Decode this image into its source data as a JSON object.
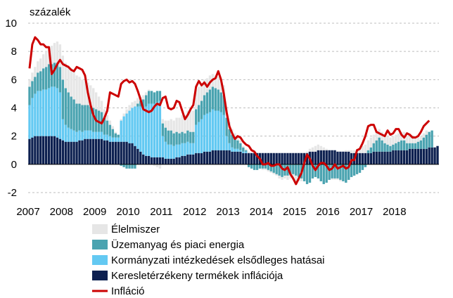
{
  "chart_data": {
    "type": "bar",
    "stacked": true,
    "unit_label": "százalék",
    "x_start": "2007-01",
    "x_end": "2018-06",
    "year_labels": [
      "2007",
      "2008",
      "2009",
      "2010",
      "2011",
      "2012",
      "2013",
      "2014",
      "2015",
      "2016",
      "2017",
      "2018"
    ],
    "ylim": [
      -2,
      10
    ],
    "y_ticks": [
      "-2",
      "0",
      "2",
      "4",
      "6",
      "8",
      "10"
    ],
    "grid": true,
    "legend_position": "bottom",
    "legend": [
      {
        "label": "Élelmiszer",
        "color": "#e6e6e6"
      },
      {
        "label": "Üzemanyag és piaci energia",
        "color": "#4aa3b0"
      },
      {
        "label": "Kormányzati intézkedések elsődleges hatásai",
        "color": "#63c9f2"
      },
      {
        "label": "Keresletérzékeny termékek inflációja",
        "color": "#0d2050"
      },
      {
        "label": "Infláció",
        "color": "#cc0000"
      }
    ],
    "series": [
      {
        "name": "Keresletérzékeny termékek inflációja",
        "color": "#0d2050",
        "values": [
          1.8,
          1.9,
          2.0,
          2.0,
          2.0,
          2.0,
          2.0,
          2.0,
          2.0,
          2.0,
          1.9,
          1.8,
          1.7,
          1.6,
          1.6,
          1.6,
          1.6,
          1.6,
          1.7,
          1.7,
          1.8,
          1.8,
          1.8,
          1.8,
          1.8,
          1.8,
          1.8,
          1.7,
          1.7,
          1.6,
          1.6,
          1.6,
          1.6,
          1.6,
          1.6,
          1.6,
          1.5,
          1.5,
          1.3,
          1.1,
          0.9,
          0.7,
          0.6,
          0.6,
          0.5,
          0.5,
          0.5,
          0.5,
          0.5,
          0.4,
          0.4,
          0.4,
          0.4,
          0.5,
          0.5,
          0.6,
          0.6,
          0.7,
          0.7,
          0.7,
          0.8,
          0.8,
          0.8,
          0.9,
          0.9,
          0.9,
          1.0,
          1.0,
          1.0,
          1.0,
          1.0,
          1.0,
          1.0,
          0.9,
          0.9,
          0.9,
          0.9,
          0.8,
          0.8,
          0.8,
          0.8,
          0.8,
          0.8,
          0.8,
          0.8,
          0.8,
          0.8,
          0.8,
          0.8,
          0.8,
          0.8,
          0.8,
          0.8,
          0.8,
          0.8,
          0.8,
          0.8,
          0.8,
          0.8,
          0.8,
          0.8,
          0.9,
          0.9,
          0.9,
          1.0,
          1.0,
          1.0,
          1.0,
          1.0,
          1.0,
          1.0,
          0.9,
          0.9,
          0.9,
          0.9,
          0.9,
          0.8,
          0.8,
          0.8,
          0.8,
          0.8,
          0.8,
          0.8,
          0.8,
          0.9,
          0.9,
          0.9,
          0.9,
          0.9,
          0.9,
          0.9,
          1.0,
          1.0,
          1.0,
          1.0,
          1.0,
          1.0,
          1.1,
          1.1,
          1.1,
          1.1,
          1.1,
          1.1,
          1.1,
          1.2,
          1.2,
          1.2,
          1.3
        ]
      },
      {
        "name": "Kormányzati intézkedések elsődleges hatásai",
        "color": "#63c9f2",
        "values": [
          2.4,
          2.8,
          3.0,
          3.2,
          3.2,
          3.3,
          3.3,
          3.4,
          3.5,
          3.5,
          3.5,
          3.3,
          1.5,
          1.2,
          1.0,
          0.9,
          0.8,
          0.7,
          0.7,
          0.6,
          0.6,
          0.6,
          0.6,
          0.5,
          0.5,
          0.5,
          0.5,
          0.4,
          0.4,
          0.4,
          0.3,
          0.3,
          0.3,
          1.5,
          1.8,
          2.0,
          2.3,
          2.5,
          2.8,
          3.0,
          3.2,
          3.3,
          3.5,
          3.7,
          3.8,
          3.8,
          3.9,
          4.0,
          1.5,
          1.2,
          1.0,
          1.0,
          0.9,
          0.9,
          0.9,
          0.9,
          0.9,
          0.9,
          0.8,
          0.8,
          2.0,
          2.2,
          2.4,
          2.6,
          2.7,
          2.8,
          2.9,
          2.8,
          2.8,
          2.7,
          2.5,
          1.0,
          0.5,
          0.3,
          0.2,
          0.2,
          0.1,
          0.1,
          0.1,
          0.0,
          0.0,
          0.0,
          0.0,
          0.0,
          0.0,
          0.0,
          0.0,
          0.0,
          0.0,
          0.0,
          0.0,
          0.0,
          0.0,
          0.0,
          0.0,
          0.0,
          0.0,
          0.0,
          0.0,
          0.0,
          0.0,
          0.0,
          0.0,
          0.0,
          0.0,
          0.0,
          0.0,
          0.0,
          0.0,
          0.0,
          0.0,
          0.0,
          0.0,
          0.0,
          0.0,
          0.0,
          0.0,
          0.0,
          0.0,
          0.0,
          0.0,
          0.0,
          0.0,
          0.0,
          0.0,
          0.0,
          0.0,
          0.0,
          0.0,
          0.0,
          0.0,
          0.0,
          0.0,
          0.0,
          0.0,
          0.0,
          0.0,
          0.0,
          0.0,
          0.0,
          0.0,
          0.0,
          0.0,
          0.0,
          0.0,
          0.0,
          0.0,
          0.0
        ]
      },
      {
        "name": "Üzemanyag és piaci energia",
        "color": "#4aa3b0",
        "values": [
          1.3,
          1.2,
          1.2,
          1.3,
          1.4,
          1.5,
          1.6,
          1.7,
          1.6,
          1.7,
          1.8,
          1.8,
          2.8,
          2.6,
          2.5,
          2.3,
          2.2,
          2.0,
          1.9,
          1.9,
          1.8,
          1.8,
          1.7,
          1.7,
          1.6,
          1.5,
          1.4,
          1.2,
          1.0,
          0.8,
          0.6,
          0.3,
          0.2,
          -0.1,
          -0.2,
          -0.3,
          -0.3,
          -0.3,
          -0.3,
          0.2,
          0.4,
          0.6,
          0.8,
          0.9,
          0.9,
          0.8,
          0.8,
          0.7,
          0.9,
          1.0,
          1.0,
          1.0,
          0.9,
          0.9,
          0.8,
          0.8,
          0.7,
          0.8,
          0.8,
          0.8,
          1.1,
          1.2,
          1.3,
          1.4,
          1.5,
          1.6,
          1.6,
          1.6,
          1.5,
          1.4,
          1.4,
          1.3,
          1.0,
          0.9,
          0.8,
          0.6,
          0.5,
          0.3,
          0.1,
          -0.2,
          -0.3,
          -0.4,
          -0.4,
          -0.3,
          -0.3,
          -0.3,
          -0.4,
          -0.5,
          -0.6,
          -0.7,
          -0.8,
          -0.9,
          -0.8,
          -0.8,
          -0.7,
          -0.7,
          -0.8,
          -0.9,
          -1.0,
          -1.2,
          -1.4,
          -1.3,
          -1.0,
          -0.9,
          -1.0,
          -1.2,
          -1.4,
          -1.3,
          -1.1,
          -1.0,
          -1.0,
          -1.0,
          -1.1,
          -1.2,
          -1.3,
          -1.1,
          -0.9,
          -0.8,
          -0.7,
          -0.6,
          -0.4,
          -0.2,
          0.2,
          0.4,
          0.6,
          0.8,
          1.0,
          0.8,
          0.6,
          0.5,
          0.4,
          0.4,
          0.5,
          0.6,
          0.7,
          0.7,
          0.5,
          0.4,
          0.4,
          0.4,
          0.5,
          0.6,
          0.8,
          1.0,
          1.1,
          1.2
        ]
      },
      {
        "name": "Élelmiszer",
        "color": "#e6e6e6",
        "values": [
          0.5,
          0.6,
          0.7,
          0.8,
          0.9,
          1.0,
          1.1,
          1.2,
          1.3,
          1.4,
          1.5,
          1.6,
          1.7,
          1.8,
          1.9,
          2.0,
          2.0,
          2.0,
          1.9,
          1.8,
          1.7,
          1.6,
          1.5,
          1.4,
          1.2,
          1.0,
          0.8,
          0.6,
          0.4,
          0.3,
          0.2,
          0.1,
          0.0,
          0.1,
          0.2,
          0.3,
          0.4,
          0.4,
          0.4,
          0.4,
          0.3,
          0.3,
          0.2,
          0.1,
          0.0,
          -0.1,
          -0.2,
          -0.3,
          0.3,
          0.5,
          0.7,
          0.8,
          0.9,
          1.0,
          1.1,
          1.2,
          1.3,
          1.4,
          1.5,
          1.5,
          1.4,
          1.3,
          1.2,
          1.1,
          1.0,
          1.0,
          0.9,
          0.9,
          0.9,
          0.8,
          0.7,
          0.6,
          0.5,
          0.4,
          0.3,
          0.2,
          0.2,
          0.1,
          0.1,
          0.1,
          0.0,
          0.0,
          0.0,
          0.0,
          -0.1,
          -0.1,
          -0.1,
          -0.1,
          -0.1,
          -0.1,
          -0.2,
          -0.2,
          -0.2,
          -0.3,
          -0.3,
          -0.4,
          -0.4,
          -0.3,
          -0.2,
          0.0,
          0.1,
          0.2,
          0.3,
          0.4,
          0.4,
          0.3,
          0.2,
          0.1,
          0.0,
          -0.1,
          -0.1,
          -0.1,
          -0.1,
          0.0,
          0.1,
          0.1,
          0.2,
          0.2,
          0.3,
          0.4,
          0.5,
          0.6,
          0.7,
          0.7,
          0.6,
          0.6,
          0.6,
          0.6,
          0.6,
          0.6,
          0.6,
          0.6,
          0.6,
          0.6,
          0.6,
          0.6,
          0.5,
          0.5,
          0.4,
          0.4,
          0.3,
          0.3,
          0.3,
          0.3
        ]
      }
    ],
    "line_series": {
      "name": "Infláció",
      "color": "#cc0000",
      "values": [
        6.8,
        8.5,
        9.0,
        8.8,
        8.5,
        8.5,
        8.3,
        8.3,
        6.4,
        6.7,
        7.1,
        7.4,
        7.1,
        7.0,
        6.9,
        6.7,
        6.6,
        6.9,
        6.8,
        6.7,
        6.3,
        5.1,
        4.2,
        3.5,
        3.1,
        3.0,
        2.9,
        3.3,
        3.8,
        5.1,
        5.0,
        4.9,
        4.8,
        5.7,
        5.9,
        6.0,
        5.8,
        5.9,
        5.7,
        5.2,
        4.6,
        3.9,
        3.8,
        3.7,
        3.8,
        4.1,
        4.3,
        4.2,
        4.7,
        4.8,
        4.0,
        3.9,
        4.0,
        4.5,
        4.4,
        3.8,
        3.2,
        3.5,
        3.9,
        4.2,
        5.5,
        5.9,
        5.6,
        5.8,
        5.5,
        5.8,
        6.0,
        6.1,
        6.6,
        6.0,
        5.0,
        3.7,
        2.7,
        2.2,
        1.8,
        2.0,
        1.9,
        1.6,
        1.4,
        1.3,
        1.0,
        0.9,
        0.6,
        0.4,
        0.0,
        0.0,
        0.1,
        -0.1,
        -0.1,
        0.0,
        0.0,
        -0.3,
        -0.4,
        -0.2,
        -0.7,
        -1.0,
        -1.4,
        -1.0,
        -0.6,
        0.1,
        0.7,
        0.4,
        -0.1,
        -0.4,
        -0.1,
        0.1,
        0.1,
        -0.1,
        -0.4,
        -0.3,
        0.0,
        -0.3,
        -0.2,
        -0.1,
        -0.3,
        -0.2,
        0.3,
        0.3,
        1.0,
        1.1,
        1.5,
        2.0,
        2.7,
        2.8,
        2.8,
        2.3,
        2.2,
        2.1,
        2.0,
        2.4,
        2.1,
        2.2,
        2.5,
        2.5,
        2.1,
        1.9,
        2.2,
        2.1,
        1.9,
        1.9,
        2.0,
        2.3,
        2.7,
        2.9,
        3.1
      ]
    }
  }
}
